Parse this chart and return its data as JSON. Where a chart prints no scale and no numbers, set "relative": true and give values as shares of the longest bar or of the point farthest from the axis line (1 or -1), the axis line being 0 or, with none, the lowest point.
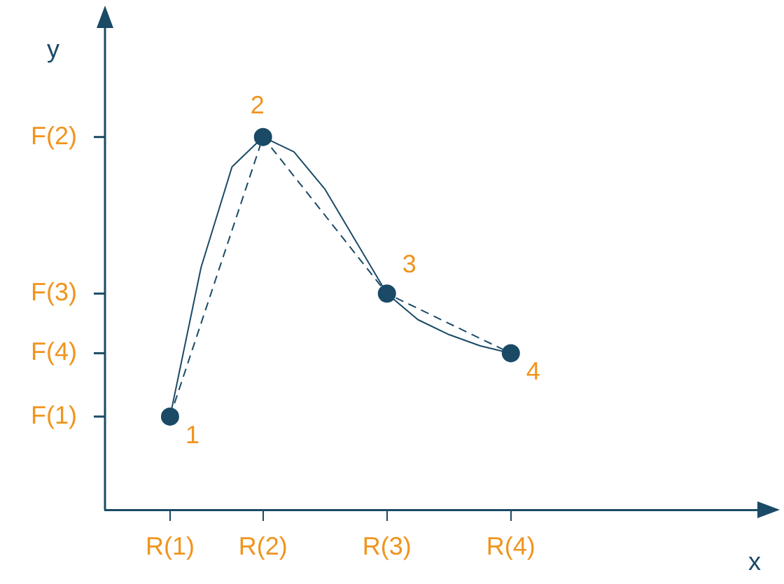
{
  "chart_data": {
    "type": "line",
    "xlabel": "x",
    "ylabel": "y",
    "relative": true,
    "categories": [
      null,
      null,
      "R(1)",
      null,
      null,
      "R(2)",
      null,
      null,
      null,
      "R(3)",
      null,
      null,
      null,
      "R(4)",
      null,
      null,
      null,
      null,
      null,
      null,
      null,
      null
    ],
    "grid": false,
    "legend": false,
    "series": [
      {
        "color": "#1a4a66",
        "line_style": "solid",
        "marker": "none",
        "values": [
          null,
          null,
          0.25,
          0.65,
          0.92,
          1.0,
          0.96,
          0.86,
          0.72,
          0.58,
          0.51,
          0.47,
          0.44,
          0.42,
          null,
          null,
          null,
          null,
          null,
          null,
          null,
          null
        ]
      },
      {
        "color": "#1a4a66",
        "line_style": "dashed",
        "marker": "circle",
        "values": [
          null,
          null,
          0.25,
          null,
          null,
          1.0,
          null,
          null,
          null,
          0.58,
          null,
          null,
          null,
          0.42,
          null,
          null,
          null,
          null,
          null,
          null,
          null,
          null
        ]
      }
    ],
    "annotations": [
      "F(1)",
      "F(2)",
      "F(3)",
      "F(4)",
      {
        "text": "1",
        "x": "R(1)",
        "y": 0.25
      },
      {
        "text": "2",
        "x": "R(2)",
        "y": 1.0
      },
      {
        "text": "3",
        "x": "R(3)",
        "y": 0.58
      },
      {
        "text": "4",
        "x": "R(4)",
        "y": 0.42
      }
    ]
  }
}
